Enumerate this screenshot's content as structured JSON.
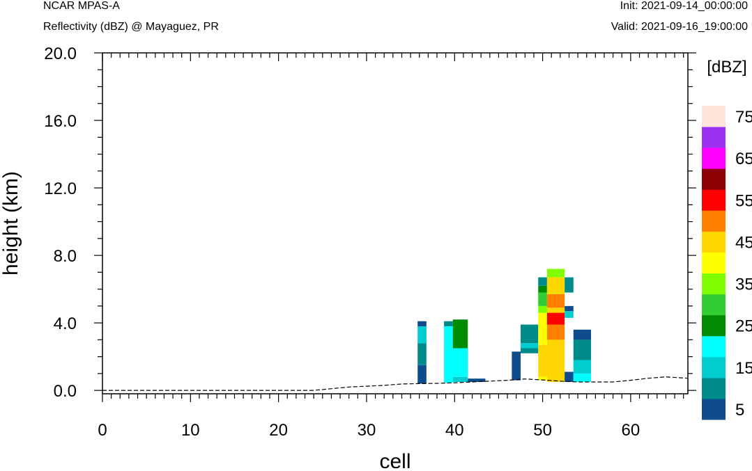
{
  "header": {
    "model": "NCAR MPAS-A",
    "field": "Reflectivity (dBZ) @ Mayaguez, PR",
    "init": "Init: 2021-09-14_00:00:00",
    "valid": "Valid: 2021-09-16_19:00:00"
  },
  "chart_data": {
    "type": "heatmap",
    "xlabel": "cell",
    "ylabel": "height (km)",
    "xlim": [
      0,
      66.5
    ],
    "ylim": [
      -0.2,
      20
    ],
    "x_ticks": [
      0,
      10,
      20,
      30,
      40,
      50,
      60
    ],
    "x_tick_labels": [
      "0",
      "10",
      "20",
      "30",
      "40",
      "50",
      "60"
    ],
    "y_ticks": [
      0,
      4,
      8,
      12,
      16,
      20
    ],
    "y_tick_labels": [
      "0.0",
      "4.0",
      "8.0",
      "12.0",
      "16.0",
      "20.0"
    ],
    "colorbar": {
      "units": "[dBZ]",
      "levels": [
        5,
        10,
        15,
        20,
        25,
        30,
        35,
        40,
        45,
        50,
        55,
        60,
        65,
        70,
        75
      ],
      "labels": [
        "5",
        "15",
        "25",
        "35",
        "45",
        "55",
        "65",
        "75"
      ],
      "colors": [
        "#0f4c8c",
        "#008b8b",
        "#00cdcd",
        "#00ffff",
        "#008b00",
        "#32cd32",
        "#7fff00",
        "#ffff00",
        "#ffd700",
        "#ff7f00",
        "#ff0000",
        "#8b0000",
        "#ff00ff",
        "#9a32f0",
        "#ffe4dc"
      ]
    },
    "terrain": [
      [
        0,
        0
      ],
      [
        24,
        0
      ],
      [
        26,
        0.1
      ],
      [
        28,
        0.2
      ],
      [
        30,
        0.25
      ],
      [
        32,
        0.3
      ],
      [
        34,
        0.38
      ],
      [
        36,
        0.4
      ],
      [
        38,
        0.42
      ],
      [
        40,
        0.45
      ],
      [
        42,
        0.5
      ],
      [
        44,
        0.55
      ],
      [
        46,
        0.6
      ],
      [
        48,
        0.68
      ],
      [
        50,
        0.62
      ],
      [
        52,
        0.55
      ],
      [
        54,
        0.5
      ],
      [
        56,
        0.5
      ],
      [
        58,
        0.5
      ],
      [
        60,
        0.6
      ],
      [
        62,
        0.72
      ],
      [
        64,
        0.8
      ],
      [
        66.5,
        0.72
      ]
    ],
    "cells": [
      {
        "x0": 35.8,
        "x1": 36.8,
        "y0": 0.4,
        "y1": 1.5,
        "dbz": 5
      },
      {
        "x0": 35.8,
        "x1": 36.8,
        "y0": 1.5,
        "y1": 2.8,
        "dbz": 10
      },
      {
        "x0": 35.8,
        "x1": 36.8,
        "y0": 2.8,
        "y1": 3.8,
        "dbz": 15
      },
      {
        "x0": 35.8,
        "x1": 36.8,
        "y0": 3.8,
        "y1": 4.1,
        "dbz": 5
      },
      {
        "x0": 38.8,
        "x1": 39.8,
        "y0": 0.45,
        "y1": 3.8,
        "dbz": 20
      },
      {
        "x0": 38.8,
        "x1": 39.8,
        "y0": 3.8,
        "y1": 4.1,
        "dbz": 10
      },
      {
        "x0": 39.8,
        "x1": 41.5,
        "y0": 0.5,
        "y1": 0.8,
        "dbz": 15
      },
      {
        "x0": 39.8,
        "x1": 41.5,
        "y0": 0.8,
        "y1": 2.5,
        "dbz": 20
      },
      {
        "x0": 39.8,
        "x1": 41.5,
        "y0": 2.5,
        "y1": 4.2,
        "dbz": 25
      },
      {
        "x0": 41.5,
        "x1": 43.5,
        "y0": 0.5,
        "y1": 0.7,
        "dbz": 5
      },
      {
        "x0": 46.5,
        "x1": 47.5,
        "y0": 0.6,
        "y1": 2.3,
        "dbz": 5
      },
      {
        "x0": 47.5,
        "x1": 49.5,
        "y0": 2.2,
        "y1": 2.5,
        "dbz": 10
      },
      {
        "x0": 47.5,
        "x1": 49.5,
        "y0": 2.5,
        "y1": 2.8,
        "dbz": 15
      },
      {
        "x0": 47.5,
        "x1": 49.5,
        "y0": 2.8,
        "y1": 3.9,
        "dbz": 10
      },
      {
        "x0": 49.5,
        "x1": 50.5,
        "y0": 0.6,
        "y1": 0.8,
        "dbz": 40
      },
      {
        "x0": 49.5,
        "x1": 50.5,
        "y0": 0.8,
        "y1": 2.7,
        "dbz": 45
      },
      {
        "x0": 49.5,
        "x1": 50.5,
        "y0": 2.7,
        "y1": 4.6,
        "dbz": 40
      },
      {
        "x0": 49.5,
        "x1": 50.5,
        "y0": 4.6,
        "y1": 5.0,
        "dbz": 35
      },
      {
        "x0": 49.5,
        "x1": 50.5,
        "y0": 5.0,
        "y1": 5.8,
        "dbz": 30
      },
      {
        "x0": 49.5,
        "x1": 50.5,
        "y0": 5.8,
        "y1": 6.2,
        "dbz": 25
      },
      {
        "x0": 49.5,
        "x1": 50.5,
        "y0": 6.2,
        "y1": 6.7,
        "dbz": 10
      },
      {
        "x0": 50.5,
        "x1": 52.5,
        "y0": 0.5,
        "y1": 3.0,
        "dbz": 45
      },
      {
        "x0": 50.5,
        "x1": 52.5,
        "y0": 3.0,
        "y1": 3.9,
        "dbz": 50
      },
      {
        "x0": 50.5,
        "x1": 52.5,
        "y0": 3.9,
        "y1": 4.6,
        "dbz": 55
      },
      {
        "x0": 50.5,
        "x1": 52.5,
        "y0": 4.6,
        "y1": 4.9,
        "dbz": 45
      },
      {
        "x0": 50.5,
        "x1": 52.5,
        "y0": 4.9,
        "y1": 5.7,
        "dbz": 50
      },
      {
        "x0": 50.5,
        "x1": 52.5,
        "y0": 5.7,
        "y1": 6.7,
        "dbz": 45
      },
      {
        "x0": 50.5,
        "x1": 52.5,
        "y0": 6.7,
        "y1": 7.2,
        "dbz": 35
      },
      {
        "x0": 52.5,
        "x1": 53.5,
        "y0": 0.5,
        "y1": 1.1,
        "dbz": 5
      },
      {
        "x0": 52.5,
        "x1": 53.5,
        "y0": 4.3,
        "y1": 4.7,
        "dbz": 15
      },
      {
        "x0": 52.5,
        "x1": 53.5,
        "y0": 4.7,
        "y1": 5.0,
        "dbz": 5
      },
      {
        "x0": 52.5,
        "x1": 53.5,
        "y0": 5.8,
        "y1": 6.7,
        "dbz": 10
      },
      {
        "x0": 53.5,
        "x1": 55.5,
        "y0": 0.5,
        "y1": 1.0,
        "dbz": 20
      },
      {
        "x0": 53.5,
        "x1": 55.5,
        "y0": 1.0,
        "y1": 1.8,
        "dbz": 15
      },
      {
        "x0": 53.5,
        "x1": 55.5,
        "y0": 1.8,
        "y1": 3.0,
        "dbz": 10
      },
      {
        "x0": 53.5,
        "x1": 55.5,
        "y0": 3.0,
        "y1": 3.6,
        "dbz": 5
      }
    ]
  }
}
